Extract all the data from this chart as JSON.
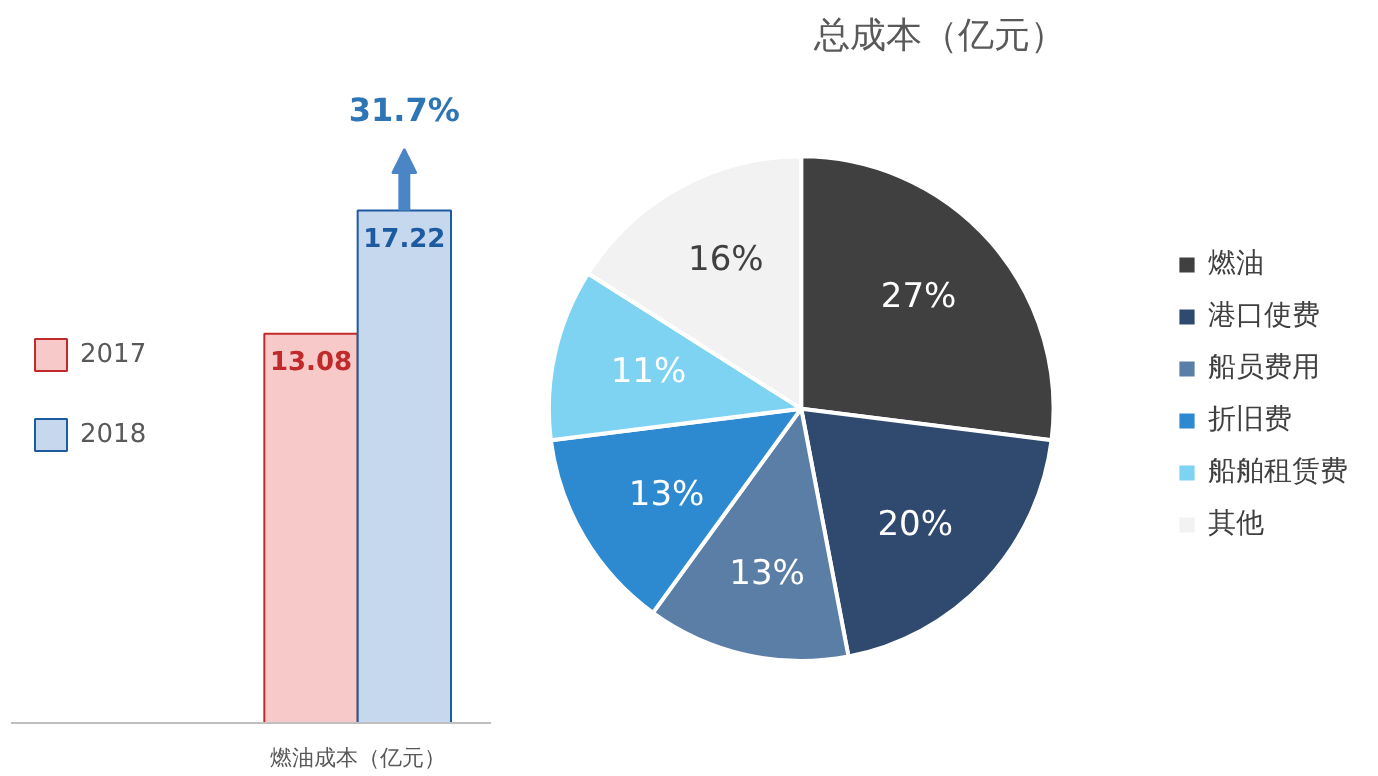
{
  "chart_data": [
    {
      "type": "bar",
      "categories": [
        "燃油成本（亿元）"
      ],
      "series": [
        {
          "name": "2017",
          "color": "#f8c9c9",
          "values": [
            13.08
          ]
        },
        {
          "name": "2018",
          "color": "#c5d8ee",
          "values": [
            17.22
          ]
        }
      ],
      "data_labels": true,
      "legend": "left",
      "annotations": [
        "31.7%"
      ]
    },
    {
      "type": "pie",
      "title": "总成本（亿元）",
      "categories": [
        "燃油",
        "港口使费",
        "船员费用",
        "折旧费",
        "船舶租赁费",
        "其他"
      ],
      "values": [
        27,
        20,
        13,
        13,
        11,
        16
      ],
      "value_labels": [
        "27%",
        "20%",
        "13%",
        "13%",
        "11%",
        "16%"
      ],
      "colors": [
        "#404040",
        "#2f4a6e",
        "#5b7ea6",
        "#2e8ad0",
        "#7fd3f2",
        "#f2f2f2"
      ],
      "legend": "right"
    }
  ]
}
